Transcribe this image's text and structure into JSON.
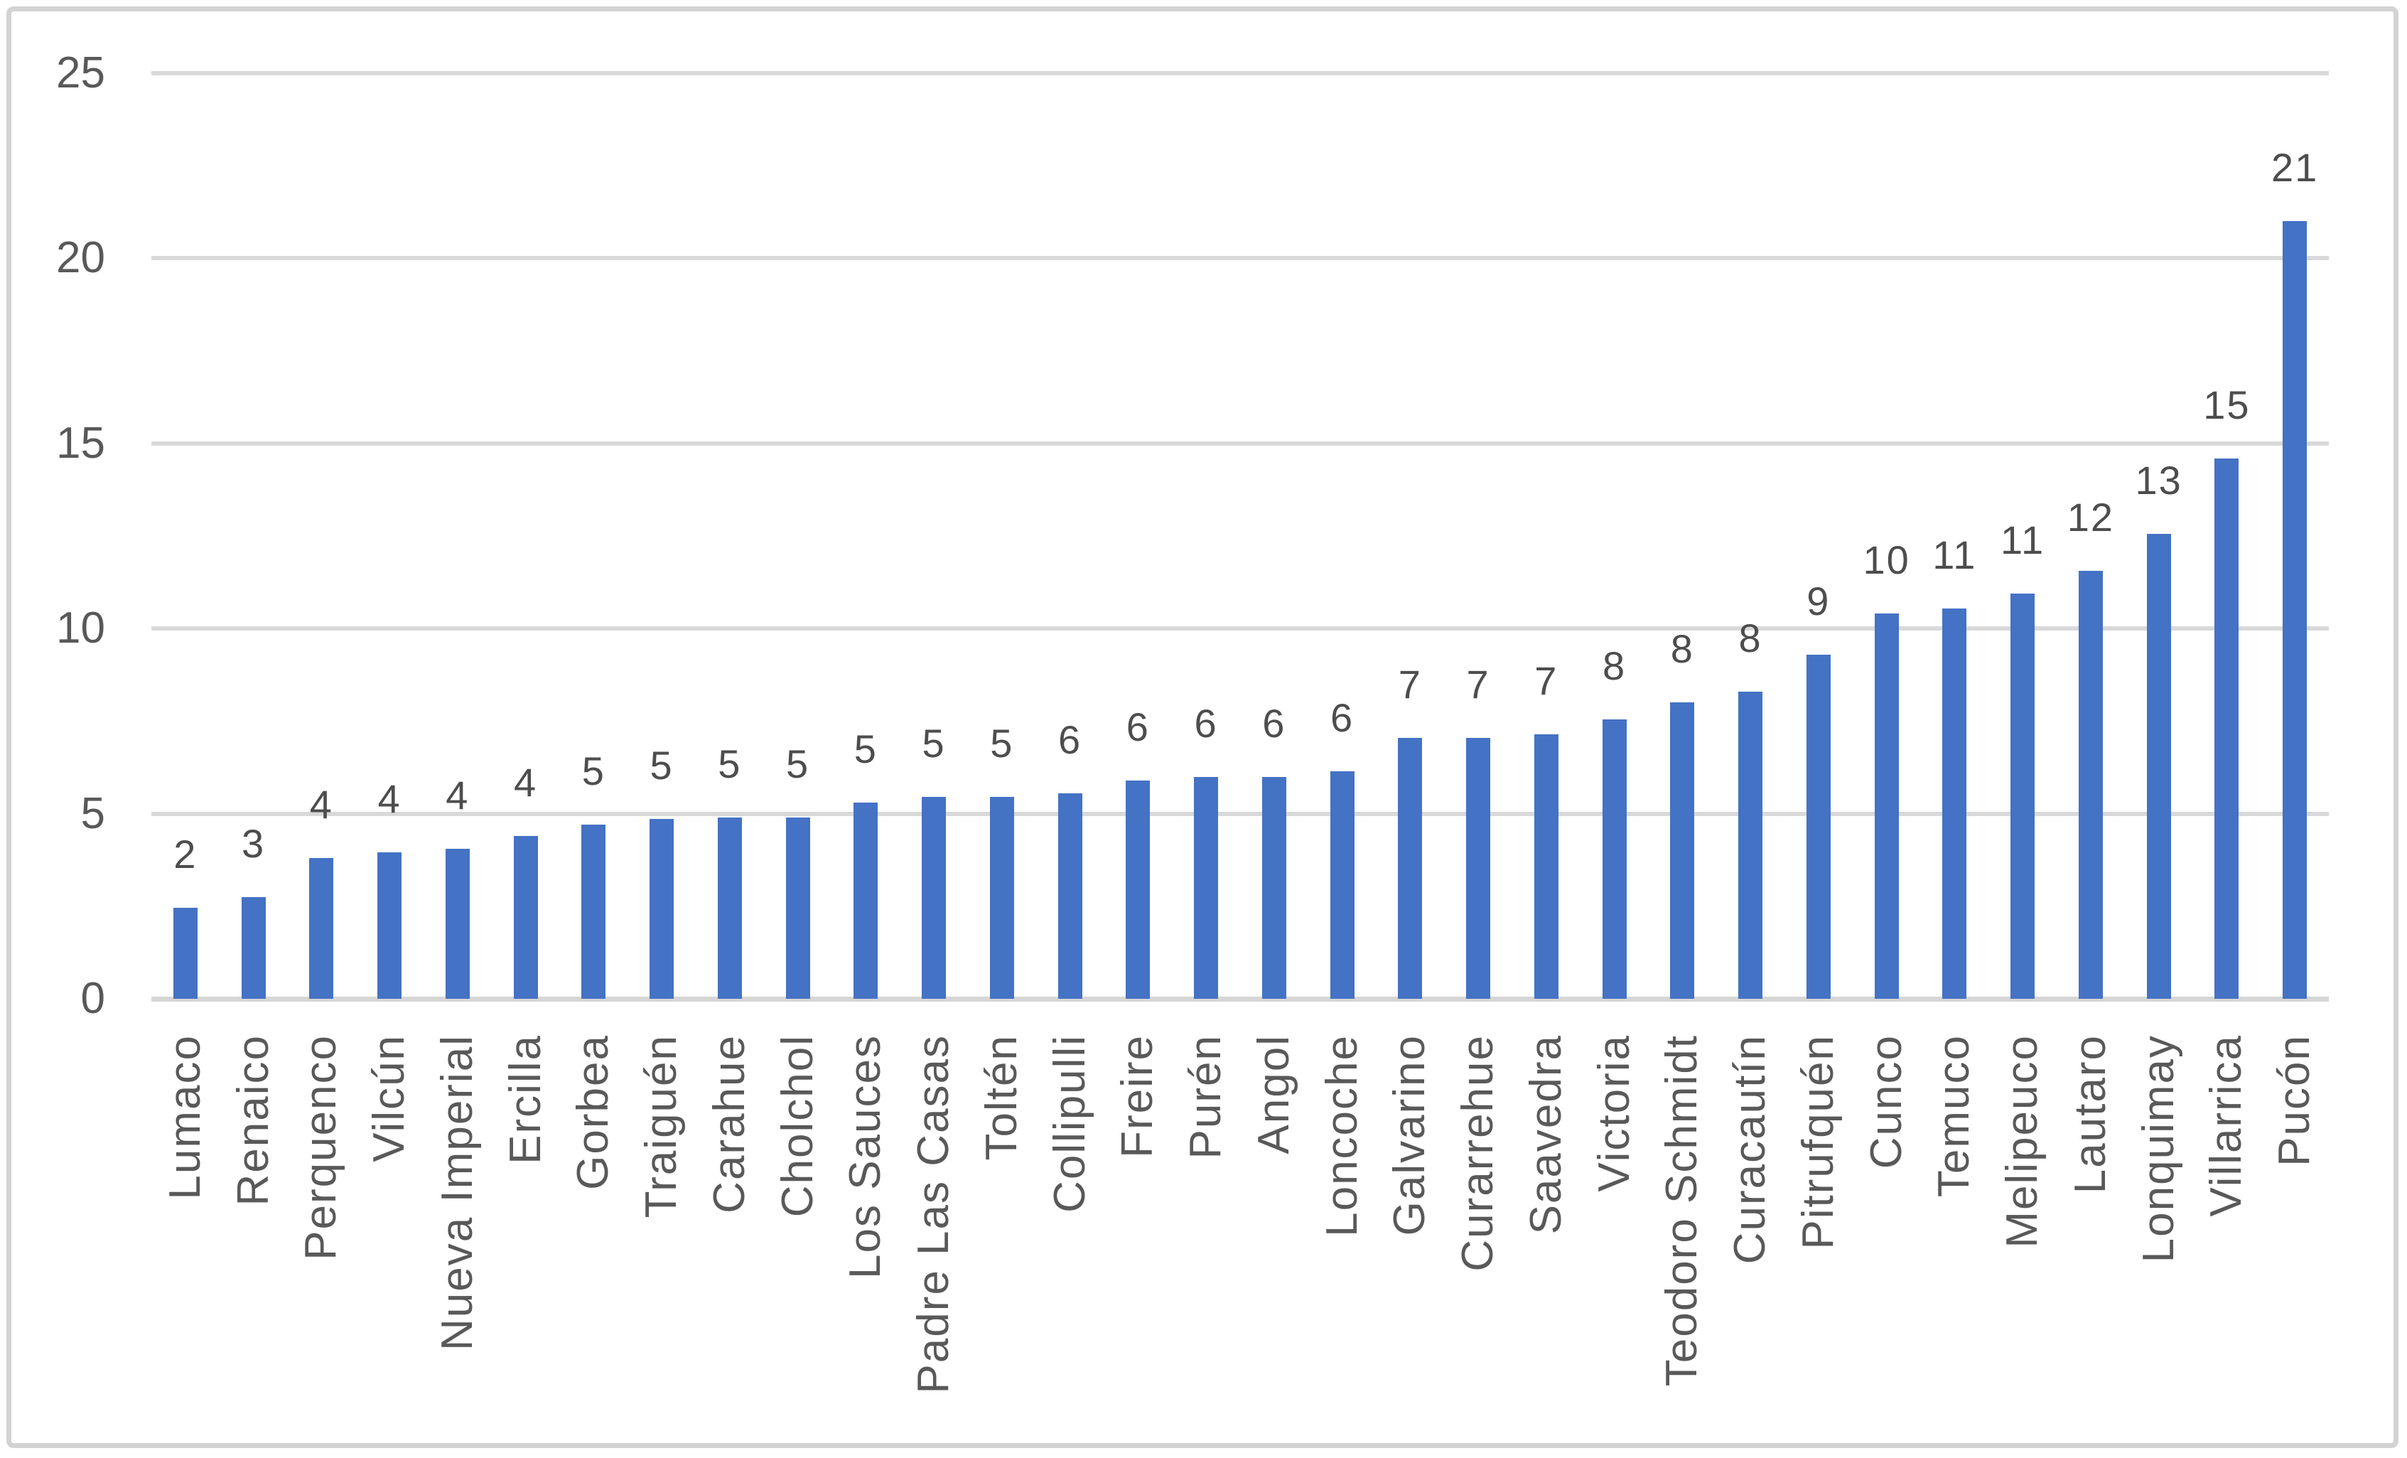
{
  "chart_data": {
    "type": "bar",
    "title": "",
    "xlabel": "",
    "ylabel": "",
    "ylim": [
      0,
      25
    ],
    "grid": "horizontal",
    "legend": "none",
    "yticks": [
      0,
      5,
      10,
      15,
      20,
      25
    ],
    "ytick_labels": [
      "0",
      "5",
      "10",
      "15",
      "20",
      "25"
    ],
    "categories": [
      "Lumaco",
      "Renaico",
      "Perquenco",
      "Vilcún",
      "Nueva Imperial",
      "Ercilla",
      "Gorbea",
      "Traiguén",
      "Carahue",
      "Cholchol",
      "Los Sauces",
      "Padre Las Casas",
      "Toltén",
      "Collipulli",
      "Freire",
      "Purén",
      "Angol",
      "Loncoche",
      "Galvarino",
      "Curarrehue",
      "Saavedra",
      "Victoria",
      "Teodoro Schmidt",
      "Curacautín",
      "Pitrufquén",
      "Cunco",
      "Temuco",
      "Melipeuco",
      "Lautaro",
      "Lonquimay",
      "Villarrica",
      "Pucón"
    ],
    "values": [
      2.45,
      2.75,
      3.8,
      3.95,
      4.05,
      4.4,
      4.7,
      4.85,
      4.9,
      4.9,
      5.3,
      5.45,
      5.45,
      5.55,
      5.9,
      6.0,
      6.0,
      6.15,
      7.05,
      7.05,
      7.15,
      7.55,
      8.0,
      8.3,
      9.3,
      10.4,
      10.55,
      10.95,
      11.55,
      12.55,
      14.6,
      21.0
    ],
    "data_labels": [
      "2",
      "3",
      "4",
      "4",
      "4",
      "4",
      "5",
      "5",
      "5",
      "5",
      "5",
      "5",
      "5",
      "6",
      "6",
      "6",
      "6",
      "6",
      "7",
      "7",
      "7",
      "8",
      "8",
      "8",
      "9",
      "10",
      "11",
      "11",
      "12",
      "13",
      "15",
      "21"
    ],
    "colors": {
      "bar": "#4472c4",
      "gridline": "#d9d9d9",
      "axis_line": "#d6d6d6",
      "tick_label": "#595959",
      "data_label": "#4d4d4d",
      "frame_border": "#d3d3d3",
      "background": "#ffffff"
    }
  }
}
